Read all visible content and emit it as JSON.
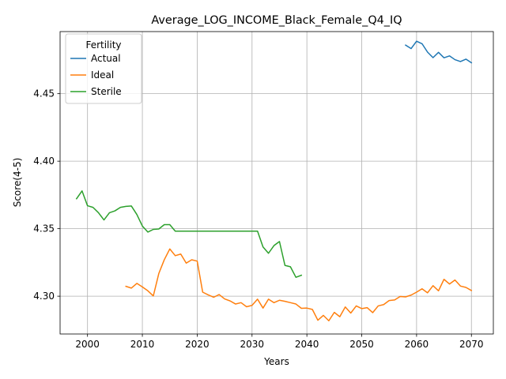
{
  "chart_data": {
    "type": "line",
    "title": "Average_LOG_INCOME_Black_Female_Q4_IQ",
    "xlabel": "Years",
    "ylabel": "Score(4-5)",
    "xlim": [
      1995,
      2074
    ],
    "ylim": [
      4.272,
      4.496
    ],
    "xticks": [
      2000,
      2010,
      2020,
      2030,
      2040,
      2050,
      2060,
      2070
    ],
    "yticks": [
      4.3,
      4.35,
      4.4,
      4.45
    ],
    "ytick_labels": [
      "4.30",
      "4.35",
      "4.40",
      "4.45"
    ],
    "grid": true,
    "legend": {
      "title": "Fertility",
      "position": "top-left"
    },
    "series": [
      {
        "name": "Actual",
        "color": "#1f77b4",
        "x": [
          2058,
          2059,
          2060,
          2061,
          2062,
          2063,
          2064,
          2065,
          2066,
          2067,
          2068,
          2069,
          2070
        ],
        "y": [
          4.486,
          4.4834,
          4.4889,
          4.487,
          4.4808,
          4.4767,
          4.4806,
          4.4766,
          4.478,
          4.4752,
          4.4738,
          4.4756,
          4.4729
        ]
      },
      {
        "name": "Ideal",
        "color": "#ff7f0e",
        "x": [
          2007,
          2008,
          2009,
          2010,
          2011,
          2012,
          2013,
          2014,
          2015,
          2016,
          2017,
          2018,
          2019,
          2020,
          2021,
          2022,
          2023,
          2024,
          2025,
          2026,
          2027,
          2028,
          2029,
          2030,
          2031,
          2032,
          2033,
          2034,
          2035,
          2036,
          2037,
          2038,
          2039,
          2040,
          2041,
          2042,
          2043,
          2044,
          2045,
          2046,
          2047,
          2048,
          2049,
          2050,
          2051,
          2052,
          2053,
          2054,
          2055,
          2056,
          2057,
          2058,
          2059,
          2060,
          2061,
          2062,
          2063,
          2064,
          2065,
          2066,
          2067,
          2068,
          2069,
          2070
        ],
        "y": [
          4.3073,
          4.306,
          4.3095,
          4.3069,
          4.304,
          4.3002,
          4.3168,
          4.327,
          4.335,
          4.33,
          4.3312,
          4.3245,
          4.327,
          4.326,
          4.303,
          4.301,
          4.2992,
          4.3012,
          4.298,
          4.2965,
          4.2942,
          4.2952,
          4.2922,
          4.2932,
          4.2978,
          4.2912,
          4.2978,
          4.2952,
          4.297,
          4.2962,
          4.2952,
          4.2942,
          4.291,
          4.2912,
          4.2902,
          4.2822,
          4.2858,
          4.2818,
          4.288,
          4.2848,
          4.292,
          4.2875,
          4.2928,
          4.2908,
          4.2915,
          4.2878,
          4.2928,
          4.2938,
          4.2968,
          4.2972,
          4.2998,
          4.2995,
          4.3008,
          4.303,
          4.3055,
          4.3025,
          4.3078,
          4.304,
          4.3125,
          4.309,
          4.312,
          4.3075,
          4.3065,
          4.3042
        ]
      },
      {
        "name": "Sterile",
        "color": "#2ca02c",
        "x": [
          1998,
          1999,
          2000,
          2001,
          2002,
          2003,
          2004,
          2005,
          2006,
          2007,
          2008,
          2009,
          2010,
          2011,
          2012,
          2013,
          2014,
          2015,
          2016,
          2017,
          2018,
          2019,
          2020,
          2021,
          2022,
          2023,
          2024,
          2025,
          2026,
          2027,
          2028,
          2029,
          2030,
          2031,
          2032,
          2033,
          2034,
          2035,
          2036,
          2037,
          2038,
          2039
        ],
        "y": [
          4.3722,
          4.378,
          4.367,
          4.3658,
          4.3618,
          4.3565,
          4.3618,
          4.3632,
          4.3658,
          4.3665,
          4.3668,
          4.3605,
          4.352,
          4.3475,
          4.3495,
          4.3498,
          4.353,
          4.353,
          4.3482,
          4.3482,
          4.3482,
          4.3482,
          4.3482,
          4.3482,
          4.3482,
          4.3482,
          4.3482,
          4.3482,
          4.3482,
          4.3482,
          4.3482,
          4.3482,
          4.3482,
          4.3482,
          4.3365,
          4.3318,
          4.3375,
          4.3405,
          4.3228,
          4.3218,
          4.314,
          4.3155
        ]
      }
    ]
  }
}
